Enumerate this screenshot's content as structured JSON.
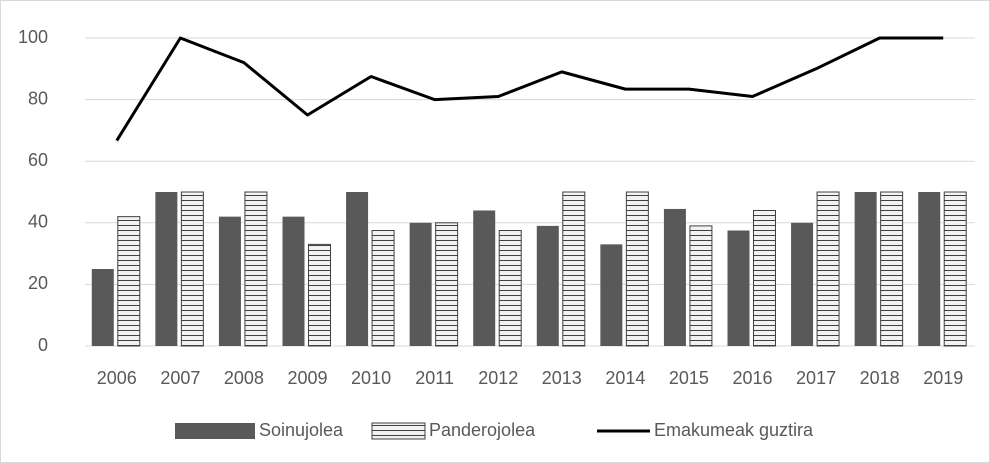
{
  "chart_data": {
    "type": "bar_line",
    "categories": [
      "2006",
      "2007",
      "2008",
      "2009",
      "2010",
      "2011",
      "2012",
      "2013",
      "2014",
      "2015",
      "2016",
      "2017",
      "2018",
      "2019"
    ],
    "series": [
      {
        "name": "Soinujolea",
        "type": "bar",
        "color": "#595959",
        "values": [
          25,
          50,
          42,
          42,
          50,
          40,
          44,
          39,
          33,
          44.5,
          37.5,
          40,
          50,
          50
        ]
      },
      {
        "name": "Panderojolea",
        "type": "bar",
        "color": "#f2f2f2",
        "pattern": "horizontal-stripes",
        "values": [
          42,
          50,
          50,
          33,
          37.5,
          40,
          37.5,
          50,
          50,
          39,
          44,
          50,
          50,
          50
        ]
      },
      {
        "name": "Emakumeak guztira",
        "type": "line",
        "color": "#000000",
        "values": [
          66.7,
          100,
          92,
          75,
          87.5,
          80,
          81,
          89,
          83.4,
          83.4,
          81,
          90,
          100,
          100
        ]
      }
    ],
    "ylim": [
      0,
      100
    ],
    "yticks": [
      0,
      20,
      40,
      60,
      80,
      100
    ],
    "grid": true,
    "legend": "bottom"
  }
}
